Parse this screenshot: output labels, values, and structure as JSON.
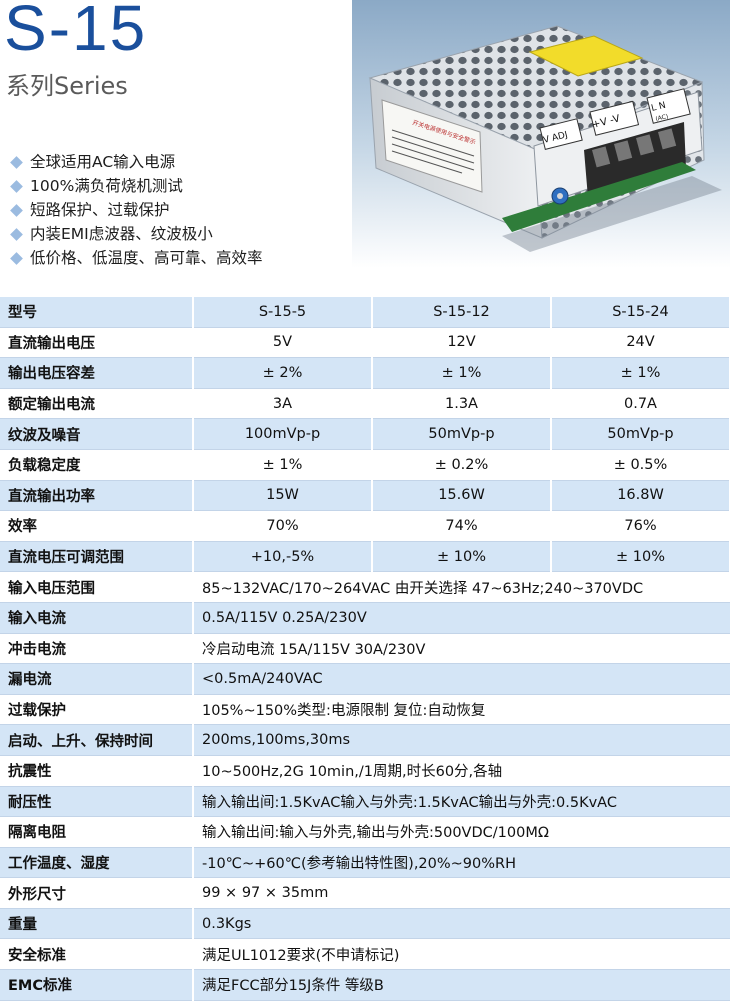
{
  "header": {
    "model": "S-15",
    "series": "系列Series"
  },
  "features": [
    "全球适用AC输入电源",
    "100%满负荷烧机测试",
    "短路保护、过载保护",
    "内装EMI虑波器、纹波极小",
    "低价格、低温度、高可靠、高效率"
  ],
  "photo": {
    "sticker_title": "开关电源使用与安全警示",
    "terminal_labels": [
      "V ADJ",
      "+V -V",
      "L N",
      "(AC)"
    ]
  },
  "spec": {
    "header": [
      "型号",
      "S-15-5",
      "S-15-12",
      "S-15-24"
    ],
    "model_rows": [
      [
        "直流输出电压",
        "5V",
        "12V",
        "24V"
      ],
      [
        "输出电压容差",
        "± 2%",
        "± 1%",
        "± 1%"
      ],
      [
        "额定输出电流",
        "3A",
        "1.3A",
        "0.7A"
      ],
      [
        "纹波及噪音",
        "100mVp-p",
        "50mVp-p",
        "50mVp-p"
      ],
      [
        "负载稳定度",
        "± 1%",
        "± 0.2%",
        "± 0.5%"
      ],
      [
        "直流输出功率",
        "15W",
        "15.6W",
        "16.8W"
      ],
      [
        "效率",
        "70%",
        "74%",
        "76%"
      ],
      [
        "直流电压可调范围",
        "+10,-5%",
        "± 10%",
        "± 10%"
      ]
    ],
    "common_rows": [
      [
        "输入电压范围",
        "85~132VAC/170~264VAC 由开关选择 47~63Hz;240~370VDC"
      ],
      [
        "输入电流",
        "0.5A/115V 0.25A/230V"
      ],
      [
        "冲击电流",
        "冷启动电流 15A/115V 30A/230V"
      ],
      [
        "漏电流",
        "<0.5mA/240VAC"
      ],
      [
        "过载保护",
        "105%~150%类型:电源限制 复位:自动恢复"
      ],
      [
        "启动、上升、保持时间",
        "200ms,100ms,30ms"
      ],
      [
        "抗震性",
        "10~500Hz,2G 10min,/1周期,时长60分,各轴"
      ],
      [
        "耐压性",
        "输入输出间:1.5KvAC输入与外壳:1.5KvAC输出与外壳:0.5KvAC"
      ],
      [
        "隔离电阻",
        "输入输出间:输入与外壳,输出与外壳:500VDC/100MΩ"
      ],
      [
        "工作温度、湿度",
        "-10℃~+60℃(参考输出特性图),20%~90%RH"
      ],
      [
        "外形尺寸",
        "99 × 97 × 35mm"
      ],
      [
        "重量",
        "0.3Kgs"
      ],
      [
        "安全标准",
        "满足UL1012要求(不申请标记)"
      ],
      [
        "EMC标准",
        "满足FCC部分15J条件 等级B"
      ]
    ]
  }
}
